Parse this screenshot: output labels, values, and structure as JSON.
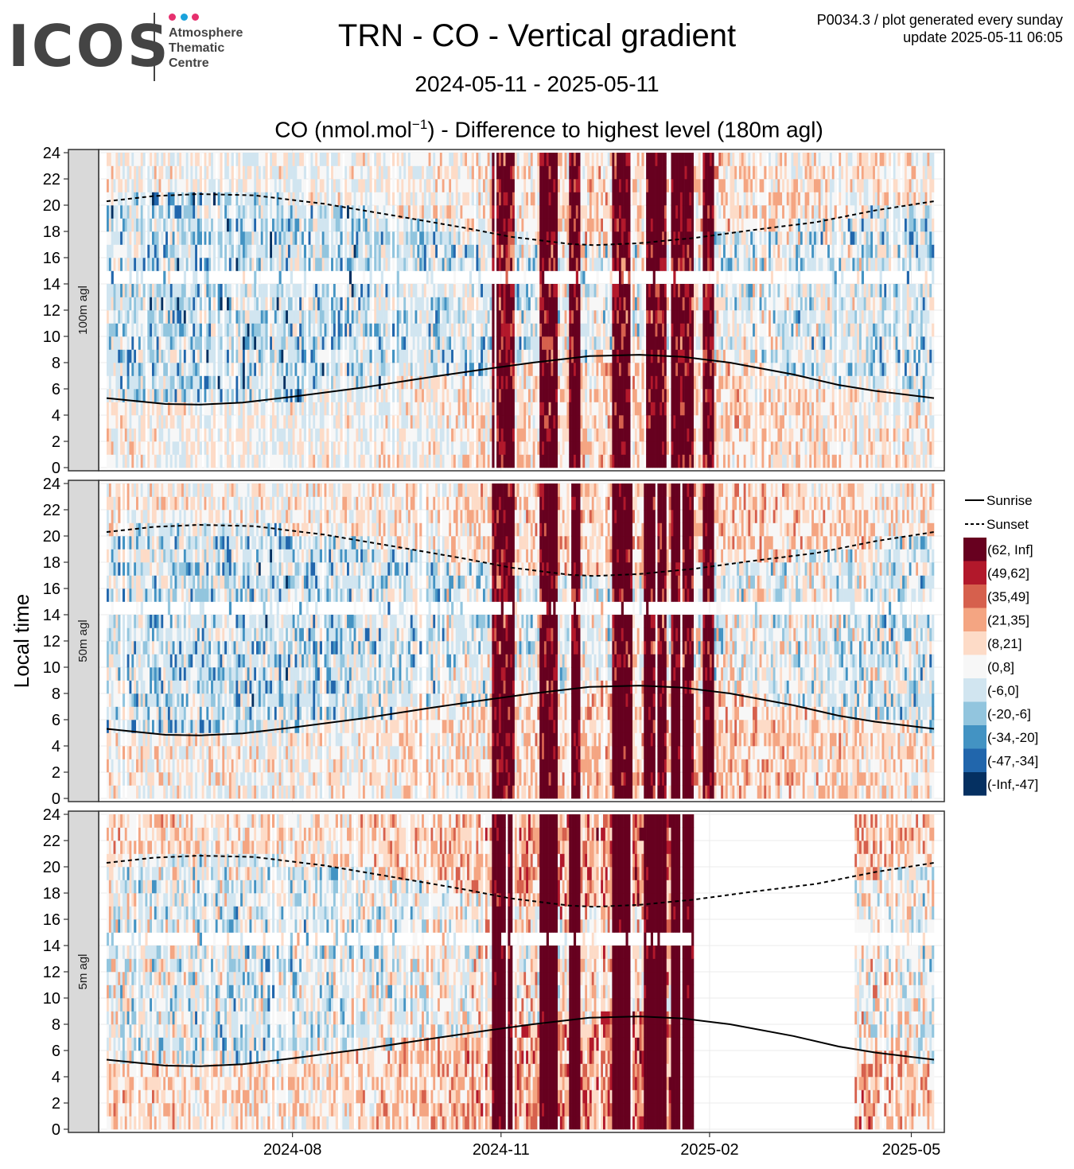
{
  "header": {
    "logo_text": "ICOS",
    "logo_sub_lines": [
      "Atmosphere",
      "Thematic",
      "Centre"
    ],
    "logo_dot_colors": [
      "#e6306e",
      "#1aa2dc",
      "#e6306e"
    ],
    "title": "TRN - CO - Vertical gradient",
    "date_range": "2024-05-11 - 2025-05-11",
    "subtitle_pre": "CO (nmol.mol",
    "subtitle_sup": "−1",
    "subtitle_post": ") - Difference to highest level (180m agl)",
    "meta_line1": "P0034.3 / plot generated every sunday",
    "meta_line2": "update  2025-05-11 06:05"
  },
  "chart_data": {
    "type": "heatmap",
    "ylabel": "Local time",
    "x_range": [
      "2024-05-11",
      "2025-05-11"
    ],
    "y_range": [
      0,
      24
    ],
    "y_ticks": [
      0,
      2,
      4,
      6,
      8,
      10,
      12,
      14,
      16,
      18,
      20,
      22,
      24
    ],
    "x_ticks": [
      {
        "date": "2024-08-01",
        "label": "2024-08"
      },
      {
        "date": "2024-11-01",
        "label": "2024-11"
      },
      {
        "date": "2025-02-01",
        "label": "2025-02"
      },
      {
        "date": "2025-05-01",
        "label": "2025-05"
      }
    ],
    "panels": [
      {
        "label": "100m agl",
        "data_gap": null
      },
      {
        "label": "50m agl",
        "data_gap": null
      },
      {
        "label": "5m agl",
        "data_gap": [
          "2025-01-25",
          "2025-04-05"
        ]
      }
    ],
    "lines": [
      {
        "name": "Sunrise",
        "style": "solid",
        "points": [
          [
            "2024-05-11",
            5.3
          ],
          [
            "2024-06-06",
            4.85
          ],
          [
            "2024-06-21",
            4.8
          ],
          [
            "2024-07-10",
            4.95
          ],
          [
            "2024-08-01",
            5.4
          ],
          [
            "2024-09-01",
            6.1
          ],
          [
            "2024-10-01",
            6.9
          ],
          [
            "2024-10-27",
            7.55
          ],
          [
            "2024-11-15",
            8.0
          ],
          [
            "2024-12-10",
            8.5
          ],
          [
            "2025-01-01",
            8.6
          ],
          [
            "2025-01-20",
            8.45
          ],
          [
            "2025-02-10",
            8.0
          ],
          [
            "2025-03-10",
            7.1
          ],
          [
            "2025-03-30",
            6.3
          ],
          [
            "2025-04-15",
            5.85
          ],
          [
            "2025-05-11",
            5.3
          ]
        ]
      },
      {
        "name": "Sunset",
        "style": "dashed",
        "points": [
          [
            "2024-05-11",
            20.3
          ],
          [
            "2024-06-01",
            20.7
          ],
          [
            "2024-06-21",
            20.85
          ],
          [
            "2024-07-15",
            20.75
          ],
          [
            "2024-08-15",
            20.1
          ],
          [
            "2024-09-15",
            19.2
          ],
          [
            "2024-10-15",
            18.3
          ],
          [
            "2024-11-05",
            17.6
          ],
          [
            "2024-12-01",
            17.05
          ],
          [
            "2024-12-12",
            16.95
          ],
          [
            "2025-01-01",
            17.1
          ],
          [
            "2025-01-25",
            17.5
          ],
          [
            "2025-02-20",
            18.1
          ],
          [
            "2025-03-20",
            18.7
          ],
          [
            "2025-04-15",
            19.6
          ],
          [
            "2025-05-11",
            20.3
          ]
        ]
      }
    ],
    "legend": {
      "placement": "right",
      "entries": [
        {
          "label": "(62, Inf]",
          "color": "#67001f"
        },
        {
          "label": "(49,62]",
          "color": "#b2182b"
        },
        {
          "label": "(35,49]",
          "color": "#d6604d"
        },
        {
          "label": "(21,35]",
          "color": "#f4a582"
        },
        {
          "label": "(8,21]",
          "color": "#fddbc7"
        },
        {
          "label": "(0,8]",
          "color": "#f7f7f7"
        },
        {
          "label": "(-6,0]",
          "color": "#d1e5f0"
        },
        {
          "label": "(-20,-6]",
          "color": "#92c5de"
        },
        {
          "label": "(-34,-20]",
          "color": "#4393c3"
        },
        {
          "label": "(-47,-34]",
          "color": "#2166ac"
        },
        {
          "label": "(-Inf,-47]",
          "color": "#053061"
        }
      ]
    },
    "grid": true
  }
}
